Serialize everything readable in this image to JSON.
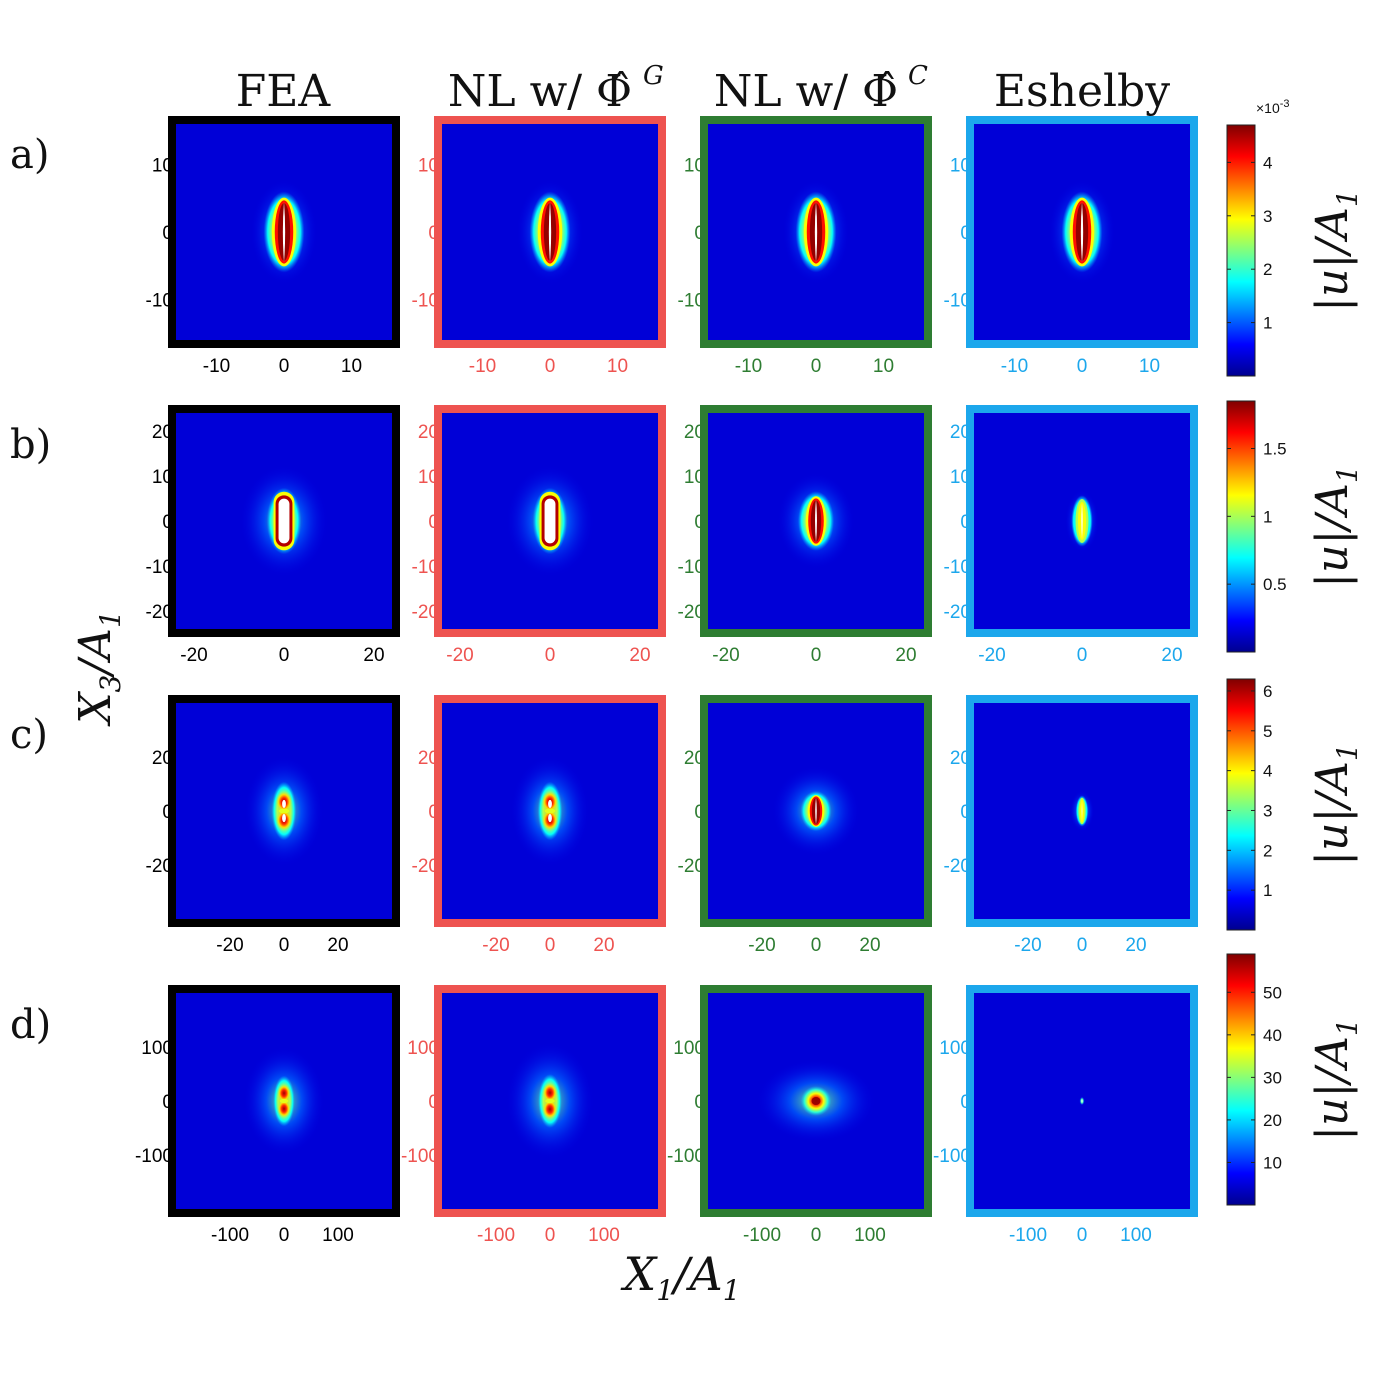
{
  "figure": {
    "column_titles": [
      "FEA",
      "NL w/ Φ̂",
      "NL w/ Φ̂",
      "Eshelby"
    ],
    "column_title_superscripts": [
      "",
      "G",
      "C",
      ""
    ],
    "column_frame_colors": [
      "#000000",
      "#EE5350",
      "#2E7D32",
      "#1CA7EC"
    ],
    "column_tick_colors": [
      "#000000",
      "#EE5350",
      "#2E7D32",
      "#1CA7EC"
    ],
    "row_labels": [
      "a)",
      "b)",
      "c)",
      "d)"
    ],
    "xlabel": {
      "main": "X",
      "sub": "1",
      "slash": "/A",
      "sub2": "1"
    },
    "ylabel": {
      "main": "X",
      "sub": "3",
      "slash": "/A",
      "sub2": "1"
    },
    "colorbar_label": "|u|/A",
    "colorbar_label_sub": "1",
    "colormap": "jet"
  },
  "chart_data": [
    {
      "type": "heatmap",
      "row": "a)",
      "xlim": [
        -16,
        16
      ],
      "ylim": [
        -16,
        16
      ],
      "x_ticks": [
        -10,
        0,
        10
      ],
      "y_ticks": [
        10,
        0,
        -10
      ],
      "x_tick_labels": [
        "-10",
        "0",
        "10"
      ],
      "y_tick_labels": [
        "10",
        "0",
        "-10"
      ],
      "colorbar": {
        "min": 0,
        "max": 4.7,
        "ticks": [
          1,
          2,
          3,
          4
        ],
        "tick_labels": [
          "1",
          "2",
          "3",
          "4"
        ],
        "exponent_label": "×10",
        "exponent_power": "-3"
      },
      "panels": [
        {
          "method": "FEA",
          "shape": "crack",
          "half_width": 1.9,
          "half_height": 5.2,
          "glow": 2.2,
          "peak": 1.0,
          "tip_fraction": 0.55
        },
        {
          "method": "NL w/ Φ̂ G",
          "shape": "crack",
          "half_width": 1.9,
          "half_height": 5.2,
          "glow": 2.2,
          "peak": 1.0,
          "tip_fraction": 0.55
        },
        {
          "method": "NL w/ Φ̂ C",
          "shape": "crack",
          "half_width": 1.9,
          "half_height": 5.2,
          "glow": 2.2,
          "peak": 1.0,
          "tip_fraction": 0.55
        },
        {
          "method": "Eshelby",
          "shape": "crack",
          "half_width": 1.9,
          "half_height": 5.2,
          "glow": 2.2,
          "peak": 1.0,
          "tip_fraction": 0.55
        }
      ]
    },
    {
      "type": "heatmap",
      "row": "b)",
      "xlim": [
        -24,
        24
      ],
      "ylim": [
        -24,
        24
      ],
      "x_ticks": [
        -20,
        0,
        20
      ],
      "y_ticks": [
        20,
        10,
        0,
        -10,
        -20
      ],
      "x_tick_labels": [
        "-20",
        "0",
        "20"
      ],
      "y_tick_labels": [
        "20",
        "10",
        "0",
        "-10",
        "-20"
      ],
      "colorbar": {
        "min": 0,
        "max": 1.85,
        "ticks": [
          0.5,
          1,
          1.5
        ],
        "tick_labels": [
          "0.5",
          "1",
          "1.5"
        ],
        "exponent_label": "",
        "exponent_power": ""
      },
      "panels": [
        {
          "method": "FEA",
          "shape": "ring",
          "half_width": 2.2,
          "half_height": 6.2,
          "glow": 5.5,
          "peak": 1.0,
          "tip_fraction": 0.5
        },
        {
          "method": "NL w/ Φ̂ G",
          "shape": "ring",
          "half_width": 2.2,
          "half_height": 6.2,
          "glow": 5.5,
          "peak": 1.0,
          "tip_fraction": 0.5
        },
        {
          "method": "NL w/ Φ̂ C",
          "shape": "crack",
          "half_width": 2.4,
          "half_height": 5.6,
          "glow": 4.5,
          "peak": 1.0,
          "tip_fraction": 0.6
        },
        {
          "method": "Eshelby",
          "shape": "crack",
          "half_width": 1.5,
          "half_height": 5.0,
          "glow": 1.6,
          "peak": 0.6,
          "tip_fraction": 0.5
        }
      ]
    },
    {
      "type": "heatmap",
      "row": "c)",
      "xlim": [
        -40,
        40
      ],
      "ylim": [
        -40,
        40
      ],
      "x_ticks": [
        -20,
        0,
        20
      ],
      "y_ticks": [
        20,
        0,
        -20
      ],
      "x_tick_labels": [
        "-20",
        "0",
        "20"
      ],
      "y_tick_labels": [
        "20",
        "0",
        "-20"
      ],
      "colorbar": {
        "min": 0,
        "max": 6.3,
        "ticks": [
          1,
          2,
          3,
          4,
          5,
          6
        ],
        "tick_labels": [
          "1",
          "2",
          "3",
          "4",
          "5",
          "6"
        ],
        "exponent_label": "",
        "exponent_power": ""
      },
      "panels": [
        {
          "method": "FEA",
          "shape": "lobes",
          "half_width": 2.2,
          "half_height": 7.5,
          "glow": 9,
          "peak": 1.0,
          "tip_fraction": 0.5
        },
        {
          "method": "NL w/ Φ̂ G",
          "shape": "lobes",
          "half_width": 2.2,
          "half_height": 7.5,
          "glow": 9,
          "peak": 1.0,
          "tip_fraction": 0.5
        },
        {
          "method": "NL w/ Φ̂ C",
          "shape": "crack",
          "half_width": 3.2,
          "half_height": 6.0,
          "glow": 9.5,
          "peak": 1.0,
          "tip_fraction": 0.6
        },
        {
          "method": "Eshelby",
          "shape": "crack",
          "half_width": 1.4,
          "half_height": 5.0,
          "glow": 2.2,
          "peak": 0.55,
          "tip_fraction": 0.5
        }
      ]
    },
    {
      "type": "heatmap",
      "row": "d)",
      "xlim": [
        -200,
        200
      ],
      "ylim": [
        -200,
        200
      ],
      "x_ticks": [
        -100,
        0,
        100
      ],
      "y_ticks": [
        100,
        0,
        -100
      ],
      "x_tick_labels": [
        "-100",
        "0",
        "100"
      ],
      "y_tick_labels": [
        "100",
        "0",
        "-100"
      ],
      "colorbar": {
        "min": 0,
        "max": 59,
        "ticks": [
          10,
          20,
          30,
          40,
          50
        ],
        "tick_labels": [
          "10",
          "20",
          "30",
          "40",
          "50"
        ],
        "exponent_label": "",
        "exponent_power": ""
      },
      "panels": [
        {
          "method": "FEA",
          "shape": "lobes",
          "half_width": 9,
          "half_height": 32,
          "glow": 48,
          "peak": 1.0,
          "tip_fraction": 0.5
        },
        {
          "method": "NL w/ Φ̂ G",
          "shape": "lobes",
          "half_width": 10,
          "half_height": 34,
          "glow": 52,
          "peak": 1.0,
          "tip_fraction": 0.5
        },
        {
          "method": "NL w/ Φ̂ C",
          "shape": "blob",
          "half_width": 15,
          "half_height": 15,
          "glow": 55,
          "peak": 1.0,
          "tip_fraction": 0.5
        },
        {
          "method": "Eshelby",
          "shape": "dot",
          "half_width": 1.5,
          "half_height": 5,
          "glow": 3,
          "peak": 0.5,
          "tip_fraction": 0.5
        }
      ]
    }
  ]
}
